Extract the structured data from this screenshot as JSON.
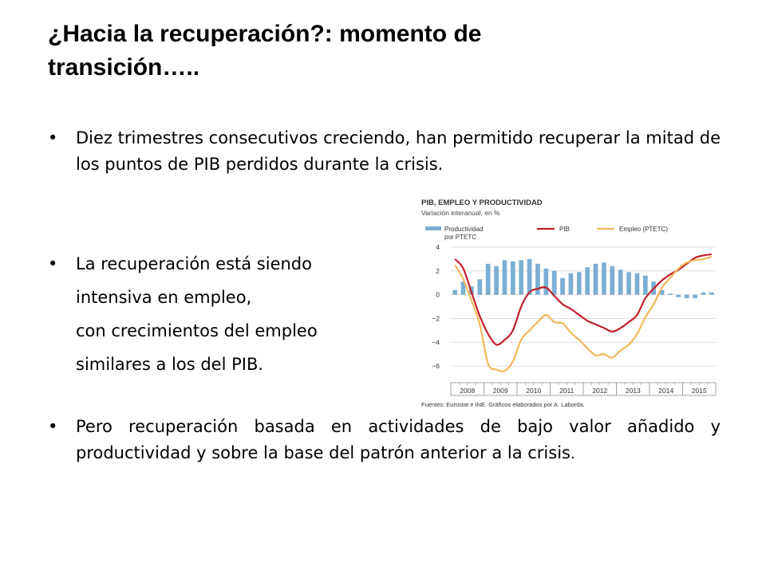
{
  "slide": {
    "title_line1": "¿Hacia la recuperación?: momento de",
    "title_line2": "transición…..",
    "bullet_char": "•",
    "bullet1": "Diez trimestres consecutivos creciendo, han permitido recuperar la mitad de los puntos de PIB perdidos durante la crisis.",
    "bullet2_lines": [
      "La recuperación está siendo",
      "intensiva en empleo,",
      "con crecimientos del empleo",
      "similares a los del PIB."
    ],
    "bullet3_main": "Pero recuperación basada en actividades de bajo valor añadido y  productividad y sobre la base del patrón anterior a la crisis",
    "bullet3_end": "."
  },
  "chart_data": {
    "type": "bar+line",
    "title": "PIB, EMPLEO Y PRODUCTIVIDAD",
    "subtitle": "Variación interanual, en %",
    "source": "Fuentes: Eurostat e INE.   Gráficos elaborados por A. Laborda.",
    "legend": [
      {
        "name_line1": "Productividad",
        "name_line2": "por PTETC",
        "color": "#7bafd4",
        "kind": "bar"
      },
      {
        "name_line1": "PIB",
        "name_line2": "",
        "color": "#c0202a",
        "kind": "line"
      },
      {
        "name_line1": "Empleo (PTETC)",
        "name_line2": "",
        "color": "#f2b85c",
        "kind": "line"
      }
    ],
    "ylim": [
      -7,
      4
    ],
    "yticks": [
      4,
      2,
      0,
      -2,
      -4,
      -6
    ],
    "ytick_labels": [
      "4",
      "2",
      "0",
      "−2",
      "−4",
      "−6"
    ],
    "years": [
      "2008",
      "2009",
      "2010",
      "2011",
      "2012",
      "2013",
      "2014",
      "2015"
    ],
    "quarters_per_year": 4,
    "series": [
      {
        "name": "Productividad por PTETC",
        "kind": "bar",
        "color": "#7bafd4",
        "values": [
          0.4,
          1.1,
          0.7,
          1.3,
          2.6,
          2.4,
          2.9,
          2.8,
          2.9,
          3.0,
          2.6,
          2.2,
          2.0,
          1.4,
          1.8,
          1.9,
          2.3,
          2.6,
          2.7,
          2.4,
          2.1,
          1.9,
          1.8,
          1.6,
          1.1,
          0.4,
          0.1,
          -0.2,
          -0.3,
          -0.3,
          0.2,
          0.2
        ]
      },
      {
        "name": "PIB",
        "kind": "line",
        "color": "#c0202a",
        "values": [
          3.0,
          2.2,
          0.2,
          -1.8,
          -3.3,
          -4.2,
          -3.8,
          -3.0,
          -1.0,
          0.2,
          0.5,
          0.6,
          -0.1,
          -0.8,
          -1.2,
          -1.7,
          -2.2,
          -2.5,
          -2.8,
          -3.1,
          -2.8,
          -2.3,
          -1.7,
          -0.3,
          0.5,
          1.2,
          1.7,
          2.1,
          2.6,
          3.1,
          3.3,
          3.4
        ]
      },
      {
        "name": "Empleo (PTETC)",
        "kind": "line",
        "color": "#f2b85c",
        "values": [
          2.5,
          1.3,
          -0.5,
          -2.5,
          -5.8,
          -6.3,
          -6.4,
          -5.6,
          -3.8,
          -3.0,
          -2.3,
          -1.7,
          -2.3,
          -2.4,
          -3.2,
          -3.8,
          -4.5,
          -5.1,
          -5.0,
          -5.3,
          -4.7,
          -4.2,
          -3.3,
          -1.9,
          -0.8,
          0.6,
          1.4,
          2.2,
          2.7,
          2.9,
          3.0,
          3.2
        ]
      }
    ]
  }
}
